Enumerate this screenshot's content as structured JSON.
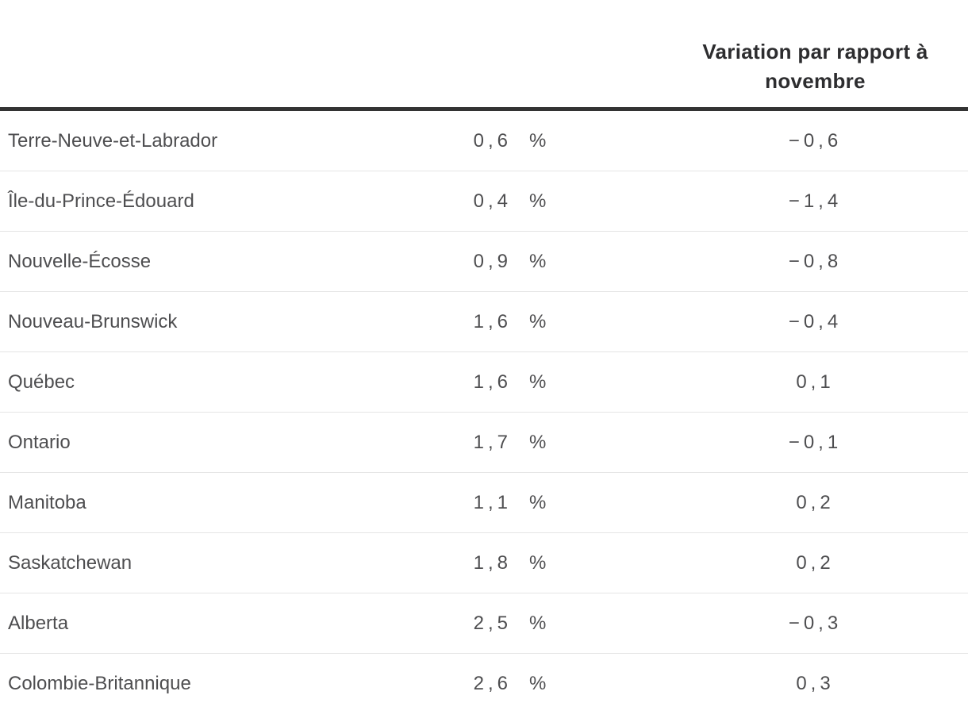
{
  "header": {
    "line1": "Variation par rapport à",
    "line2": "novembre"
  },
  "colors": {
    "header_text": "#2d2d2f",
    "body_text": "#4e4e50",
    "header_rule": "#333333",
    "row_separator": "#e5e5e5",
    "background": "#ffffff"
  },
  "chart_data": {
    "type": "table",
    "title": "",
    "columns": [
      "",
      "",
      "Variation par rapport à novembre"
    ],
    "rows": [
      {
        "label": "Terre-Neuve-et-Labrador",
        "value": "0,6",
        "unit": "%",
        "variation": "−0,6",
        "value_num": 0.6,
        "variation_num": -0.6
      },
      {
        "label": "Île-du-Prince-Édouard",
        "value": "0,4",
        "unit": "%",
        "variation": "−1,4",
        "value_num": 0.4,
        "variation_num": -1.4
      },
      {
        "label": "Nouvelle-Écosse",
        "value": "0,9",
        "unit": "%",
        "variation": "−0,8",
        "value_num": 0.9,
        "variation_num": -0.8
      },
      {
        "label": "Nouveau-Brunswick",
        "value": "1,6",
        "unit": "%",
        "variation": "−0,4",
        "value_num": 1.6,
        "variation_num": -0.4
      },
      {
        "label": "Québec",
        "value": "1,6",
        "unit": "%",
        "variation": "0,1",
        "value_num": 1.6,
        "variation_num": 0.1
      },
      {
        "label": "Ontario",
        "value": "1,7",
        "unit": "%",
        "variation": "−0,1",
        "value_num": 1.7,
        "variation_num": -0.1
      },
      {
        "label": "Manitoba",
        "value": "1,1",
        "unit": "%",
        "variation": "0,2",
        "value_num": 1.1,
        "variation_num": 0.2
      },
      {
        "label": "Saskatchewan",
        "value": "1,8",
        "unit": "%",
        "variation": "0,2",
        "value_num": 1.8,
        "variation_num": 0.2
      },
      {
        "label": "Alberta",
        "value": "2,5",
        "unit": "%",
        "variation": "−0,3",
        "value_num": 2.5,
        "variation_num": -0.3
      },
      {
        "label": "Colombie-Britannique",
        "value": "2,6",
        "unit": "%",
        "variation": "0,3",
        "value_num": 2.6,
        "variation_num": 0.3
      }
    ]
  }
}
